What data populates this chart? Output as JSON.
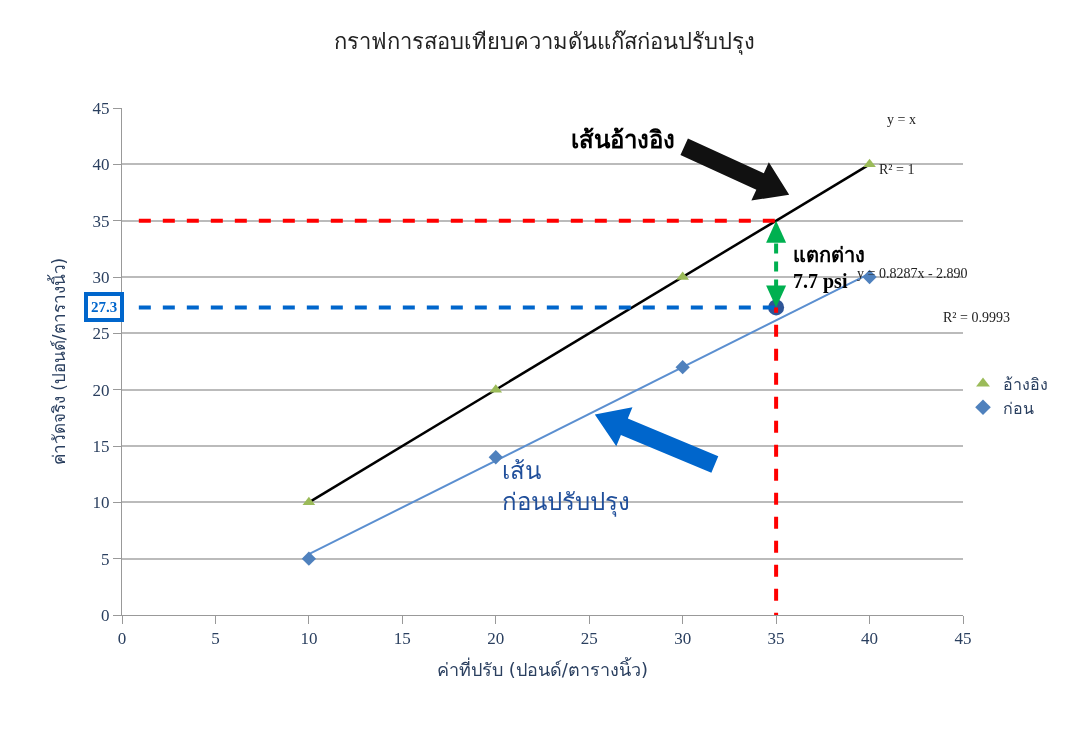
{
  "chart_data": {
    "type": "scatter",
    "title": "กราฟการสอบเทียบความดันแก๊สก่อนปรับปรุง",
    "xlabel": "ค่าที่ปรับ (ปอนด์/ตารางนิ้ว)",
    "ylabel": "ค่าวัดจริง (ปอนด์/ตารางนิ้ว)",
    "x": [
      10,
      20,
      30,
      40
    ],
    "series": [
      {
        "name": "อ้างอิง",
        "color": "#9bbb59",
        "marker": "triangle",
        "values": [
          10,
          20,
          30,
          40
        ]
      },
      {
        "name": "ก่อน",
        "color": "#4f81bd",
        "marker": "diamond",
        "values": [
          5,
          14,
          22,
          30
        ]
      },
      {
        "type": "line",
        "color": "#000000",
        "marker": "none",
        "x": [
          10,
          40
        ],
        "values": [
          10,
          40
        ]
      },
      {
        "type": "line",
        "color": "#5b8fd0",
        "marker": "none",
        "x": [
          10,
          40
        ],
        "values": [
          5.4,
          30.3
        ]
      },
      {
        "color": "#2f5597",
        "marker": "circle",
        "x": [
          35
        ],
        "values": [
          27.3
        ]
      }
    ],
    "xlim": [
      0,
      45
    ],
    "ylim": [
      0,
      45
    ],
    "xticks": [
      0,
      5,
      10,
      15,
      20,
      25,
      30,
      35,
      40,
      45
    ],
    "yticks": [
      0,
      5,
      10,
      15,
      20,
      25,
      30,
      35,
      40,
      45
    ],
    "grid": "y",
    "legend": "right",
    "ref_lines": [
      {
        "axis": "y",
        "value": 35,
        "label": null,
        "color": "#ff0000",
        "line_style": "dashed"
      },
      {
        "axis": "y",
        "value": 27.3,
        "label": "27.3",
        "color": "#0066cc",
        "line_style": "dashed"
      },
      {
        "axis": "x",
        "value": 35,
        "label": null,
        "color": "#ff0000",
        "line_style": "dashed"
      }
    ],
    "annotations": [
      "เส้นอ้างอิง",
      "เส้น\nก่อนปรับปรุง",
      {
        "text": "แตกต่าง\n7.7 psi",
        "x": 35,
        "y": 27.3
      },
      "y = x",
      "R² = 1",
      "y = 0.8287x - 2.890",
      "R² = 0.9993"
    ]
  }
}
